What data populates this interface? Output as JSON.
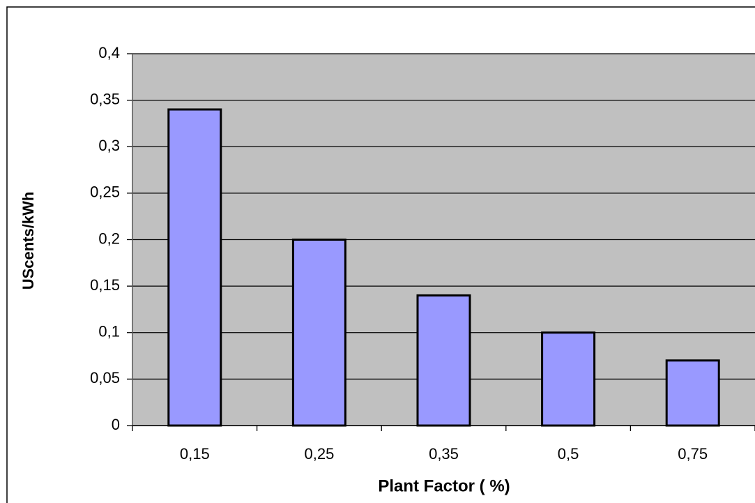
{
  "chart_data": {
    "type": "bar",
    "x_label": "Plant Factor ( %)",
    "y_label": "UScents/kWh",
    "categories": [
      "0,15",
      "0,25",
      "0,35",
      "0,5",
      "0,75"
    ],
    "values": [
      0.34,
      0.2,
      0.14,
      0.1,
      0.07
    ],
    "color": "#9999ff",
    "ylim": [
      0,
      0.4
    ],
    "yticks": [
      0,
      {
        "value": 0.05,
        "label": "0,05"
      },
      {
        "value": 0.1,
        "label": "0,1"
      },
      {
        "value": 0.15,
        "label": "0,15"
      },
      {
        "value": 0.2,
        "label": "0,2"
      },
      {
        "value": 0.25,
        "label": "0,25"
      },
      {
        "value": 0.3,
        "label": "0,3"
      },
      {
        "value": 0.35,
        "label": "0,35"
      },
      {
        "value": 0.4,
        "label": "0,4"
      }
    ],
    "grid": true
  }
}
